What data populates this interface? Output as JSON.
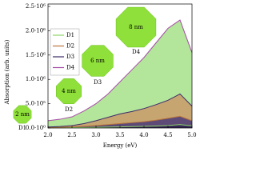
{
  "chart_data": {
    "type": "area",
    "y_label": "Absorption (arb. units)",
    "x_label": "Energy (eV)",
    "x": [
      2.0,
      2.25,
      2.5,
      2.75,
      3.0,
      3.25,
      3.5,
      3.75,
      4.0,
      4.25,
      4.5,
      4.75,
      5.0
    ],
    "series": [
      {
        "name": "D1",
        "color": "#8fd46a",
        "fill": "#2f2250",
        "values": [
          5000,
          6000,
          8000,
          10000,
          14000,
          18000,
          22000,
          28000,
          34000,
          42000,
          52000,
          70000,
          45000
        ]
      },
      {
        "name": "D2",
        "color": "#b8743c",
        "fill": "#4a3a78",
        "values": [
          10000,
          15000,
          22000,
          35000,
          50000,
          70000,
          90000,
          110000,
          130000,
          160000,
          200000,
          240000,
          150000
        ]
      },
      {
        "name": "D3",
        "color": "#3b2c6b",
        "fill": "#c99a6a",
        "values": [
          20000,
          30000,
          50000,
          90000,
          150000,
          220000,
          290000,
          340000,
          400000,
          480000,
          570000,
          700000,
          450000
        ]
      },
      {
        "name": "D4",
        "color": "#a64ca6",
        "fill": "#a6e08a",
        "values": [
          150000,
          180000,
          230000,
          350000,
          500000,
          700000,
          950000,
          1200000,
          1450000,
          1750000,
          2050000,
          2220000,
          1550000
        ]
      }
    ],
    "xlim": [
      2.0,
      5.0
    ],
    "ylim": [
      0,
      2550000
    ],
    "xticks": [
      {
        "value": 2.0,
        "label": "2.0"
      },
      2.5,
      {
        "value": 3.0,
        "label": "3.0"
      },
      3.5,
      {
        "value": 4.0,
        "label": "4.0"
      },
      4.5,
      {
        "value": 5.0,
        "label": "5.0"
      }
    ],
    "yticks": [
      {
        "value": 0,
        "label": "0.0·10⁰"
      },
      {
        "value": 500000,
        "label": "5.0·10⁵"
      },
      {
        "value": 1000000,
        "label": "1.0·10⁶"
      },
      {
        "value": 1500000,
        "label": "1.5·10⁶"
      },
      {
        "value": 2000000,
        "label": "2.0·10⁶"
      },
      {
        "value": 2500000,
        "label": "2.5·10⁶"
      }
    ],
    "legend": "upper left",
    "annotations": [
      {
        "size": "2 nm",
        "label": "D1",
        "color": "#8fe03a"
      },
      {
        "size": "4 nm",
        "label": "D2",
        "color": "#8fe03a"
      },
      {
        "size": "6 nm",
        "label": "D3",
        "color": "#8fe03a"
      },
      {
        "size": "8 nm",
        "label": "D4",
        "color": "#8fe03a"
      }
    ]
  }
}
